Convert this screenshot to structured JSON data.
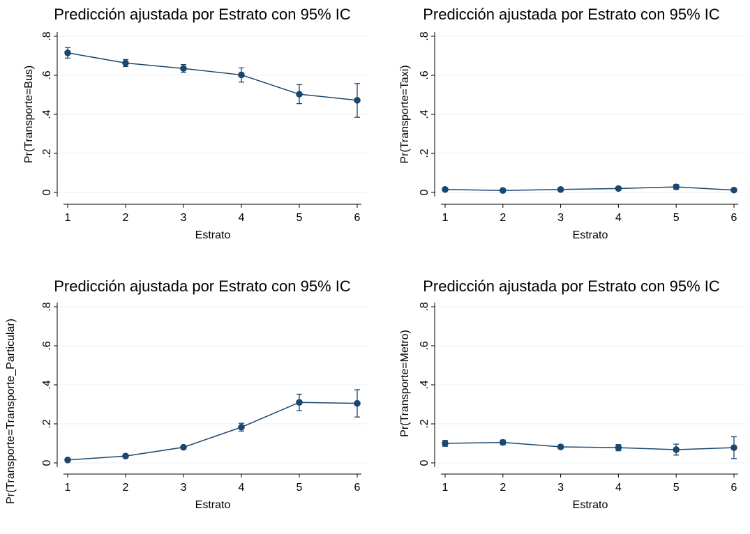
{
  "chart_data": [
    {
      "type": "line",
      "title": "Predicción ajustada por Estrato con 95% IC",
      "xlabel": "Estrato",
      "ylabel": "Pr(Transporte=Bus)",
      "x": [
        1,
        2,
        3,
        4,
        5,
        6
      ],
      "x_tick_labels": [
        "1",
        "2",
        "3",
        "4",
        "5",
        "6"
      ],
      "y_tick_labels": [
        "0",
        ".2",
        ".4",
        ".6",
        ".8"
      ],
      "y_ticks": [
        0,
        0.2,
        0.4,
        0.6,
        0.8
      ],
      "ylim": [
        0,
        0.8
      ],
      "series": [
        {
          "values": [
            0.715,
            0.663,
            0.635,
            0.602,
            0.503,
            0.472
          ],
          "ci_low": [
            0.688,
            0.645,
            0.615,
            0.565,
            0.455,
            0.385
          ],
          "ci_high": [
            0.742,
            0.681,
            0.655,
            0.638,
            0.552,
            0.558
          ]
        }
      ],
      "grid": true,
      "color": "#1a476f"
    },
    {
      "type": "line",
      "title": "Predicción ajustada por Estrato con 95% IC",
      "xlabel": "Estrato",
      "ylabel": "Pr(Transporte=Taxi)",
      "x": [
        1,
        2,
        3,
        4,
        5,
        6
      ],
      "x_tick_labels": [
        "1",
        "2",
        "3",
        "4",
        "5",
        "6"
      ],
      "y_tick_labels": [
        "0",
        ".2",
        ".4",
        ".6",
        ".8"
      ],
      "y_ticks": [
        0,
        0.2,
        0.4,
        0.6,
        0.8
      ],
      "ylim": [
        0,
        0.8
      ],
      "series": [
        {
          "values": [
            0.015,
            0.01,
            0.015,
            0.02,
            0.028,
            0.012
          ],
          "ci_low": [
            0.008,
            0.005,
            0.009,
            0.012,
            0.016,
            0.005
          ],
          "ci_high": [
            0.022,
            0.015,
            0.021,
            0.028,
            0.04,
            0.019
          ]
        }
      ],
      "grid": true,
      "color": "#1a476f"
    },
    {
      "type": "line",
      "title": "Predicción ajustada por Estrato con 95% IC",
      "xlabel": "Estrato",
      "ylabel": "Pr(Transporte=Transporte_Particular)",
      "x": [
        1,
        2,
        3,
        4,
        5,
        6
      ],
      "x_tick_labels": [
        "1",
        "2",
        "3",
        "4",
        "5",
        "6"
      ],
      "y_tick_labels": [
        "0",
        ".2",
        ".4",
        ".6",
        ".8"
      ],
      "y_ticks": [
        0,
        0.2,
        0.4,
        0.6,
        0.8
      ],
      "ylim": [
        0,
        0.8
      ],
      "series": [
        {
          "values": [
            0.015,
            0.035,
            0.08,
            0.183,
            0.31,
            0.305
          ],
          "ci_low": [
            0.008,
            0.026,
            0.071,
            0.163,
            0.268,
            0.235
          ],
          "ci_high": [
            0.022,
            0.044,
            0.089,
            0.203,
            0.352,
            0.375
          ]
        }
      ],
      "grid": true,
      "color": "#1a476f"
    },
    {
      "type": "line",
      "title": "Predicción ajustada por Estrato con 95% IC",
      "xlabel": "Estrato",
      "ylabel": "Pr(Transporte=Metro)",
      "x": [
        1,
        2,
        3,
        4,
        5,
        6
      ],
      "x_tick_labels": [
        "1",
        "2",
        "3",
        "4",
        "5",
        "6"
      ],
      "y_tick_labels": [
        "0",
        ".2",
        ".4",
        ".6",
        ".8"
      ],
      "y_ticks": [
        0,
        0.2,
        0.4,
        0.6,
        0.8
      ],
      "ylim": [
        0,
        0.8
      ],
      "series": [
        {
          "values": [
            0.1,
            0.105,
            0.082,
            0.078,
            0.068,
            0.078
          ],
          "ci_low": [
            0.085,
            0.093,
            0.072,
            0.062,
            0.04,
            0.022
          ],
          "ci_high": [
            0.115,
            0.117,
            0.092,
            0.094,
            0.096,
            0.134
          ]
        }
      ],
      "grid": true,
      "color": "#1a476f"
    }
  ]
}
